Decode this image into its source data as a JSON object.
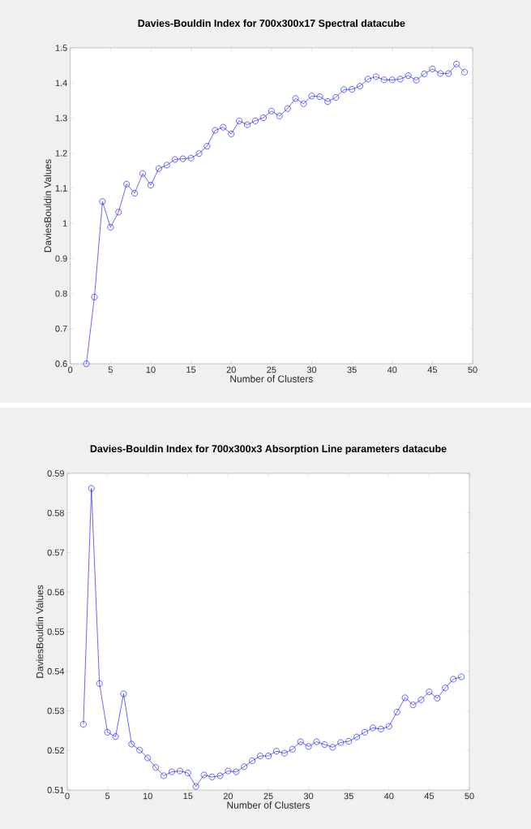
{
  "chart_data": [
    {
      "type": "line",
      "title": "Davies-Bouldin Index for 700x300x17 Spectral datacube",
      "xlabel": "Number of Clusters",
      "ylabel": "DaviesBouldin Values",
      "x": [
        2,
        3,
        4,
        5,
        6,
        7,
        8,
        9,
        10,
        11,
        12,
        13,
        14,
        15,
        16,
        17,
        18,
        19,
        20,
        21,
        22,
        23,
        24,
        25,
        26,
        27,
        28,
        29,
        30,
        31,
        32,
        33,
        34,
        35,
        36,
        37,
        38,
        39,
        40,
        41,
        42,
        43,
        44,
        45,
        46,
        47,
        48,
        49
      ],
      "values": [
        0.6,
        0.79,
        1.062,
        0.989,
        1.032,
        1.112,
        1.086,
        1.142,
        1.109,
        1.156,
        1.166,
        1.182,
        1.184,
        1.186,
        1.199,
        1.22,
        1.265,
        1.274,
        1.255,
        1.292,
        1.281,
        1.292,
        1.301,
        1.32,
        1.306,
        1.327,
        1.356,
        1.341,
        1.363,
        1.361,
        1.347,
        1.359,
        1.381,
        1.382,
        1.391,
        1.411,
        1.418,
        1.409,
        1.409,
        1.411,
        1.421,
        1.408,
        1.426,
        1.44,
        1.427,
        1.427,
        1.454,
        1.431
      ],
      "color": "#0000ff",
      "marker": "circle",
      "xlim": [
        0,
        50
      ],
      "ylim": [
        0.6,
        1.5
      ],
      "xticks": [
        0,
        5,
        10,
        15,
        20,
        25,
        30,
        35,
        40,
        45,
        50
      ],
      "yticks": [
        0.6,
        0.7,
        0.8,
        0.9,
        1,
        1.1,
        1.2,
        1.3,
        1.4,
        1.5
      ]
    },
    {
      "type": "line",
      "title": "Davies-Bouldin Index for 700x300x3 Absorption Line parameters datacube",
      "xlabel": "Number of Clusters",
      "ylabel": "DaviesBouldin Values",
      "x": [
        2,
        3,
        4,
        5,
        6,
        7,
        8,
        9,
        10,
        11,
        12,
        13,
        14,
        15,
        16,
        17,
        18,
        19,
        20,
        21,
        22,
        23,
        24,
        25,
        26,
        27,
        28,
        29,
        30,
        31,
        32,
        33,
        34,
        35,
        36,
        37,
        38,
        39,
        40,
        41,
        42,
        43,
        44,
        45,
        46,
        47,
        48,
        49
      ],
      "values": [
        0.5266,
        0.5862,
        0.5369,
        0.5246,
        0.5235,
        0.5343,
        0.5216,
        0.5201,
        0.5181,
        0.5157,
        0.5136,
        0.5146,
        0.5148,
        0.5143,
        0.5109,
        0.5138,
        0.5133,
        0.5136,
        0.5148,
        0.5146,
        0.5159,
        0.5174,
        0.5186,
        0.5186,
        0.5198,
        0.5193,
        0.5203,
        0.5222,
        0.521,
        0.5222,
        0.5215,
        0.5208,
        0.522,
        0.5223,
        0.5234,
        0.5246,
        0.5257,
        0.5254,
        0.5261,
        0.5297,
        0.5333,
        0.5315,
        0.5328,
        0.5348,
        0.5332,
        0.5358,
        0.538,
        0.5386
      ],
      "color": "#0000ff",
      "marker": "circle",
      "xlim": [
        0,
        50
      ],
      "ylim": [
        0.51,
        0.59
      ],
      "xticks": [
        0,
        5,
        10,
        15,
        20,
        25,
        30,
        35,
        40,
        45,
        50
      ],
      "yticks": [
        0.51,
        0.52,
        0.53,
        0.54,
        0.55,
        0.56,
        0.57,
        0.58,
        0.59
      ]
    }
  ]
}
